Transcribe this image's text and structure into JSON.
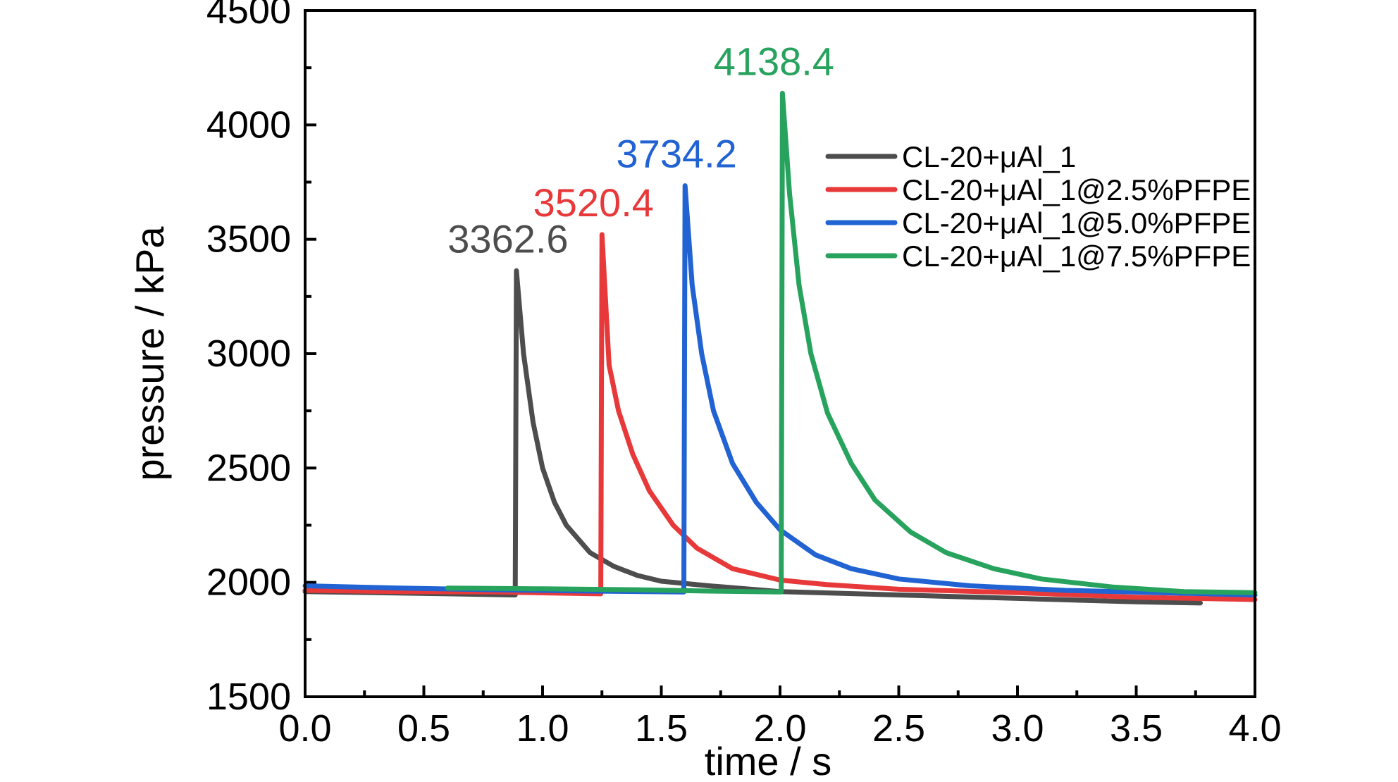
{
  "chart_data": {
    "type": "line",
    "xlabel": "time / s",
    "ylabel": "pressure / kPa",
    "xlim": [
      0.0,
      4.0
    ],
    "ylim": [
      1500,
      4500
    ],
    "x_ticks": [
      "0.0",
      "0.5",
      "1.0",
      "1.5",
      "2.0",
      "2.5",
      "3.0",
      "3.5",
      "4.0"
    ],
    "y_ticks": [
      "1500",
      "2000",
      "2500",
      "3000",
      "3500",
      "4000",
      "4500"
    ],
    "grid": false,
    "legend_position": "top-right",
    "series": [
      {
        "name": "CL-20+μAl_1",
        "color": "#4d4d4d",
        "points": [
          [
            0.0,
            1960
          ],
          [
            0.3,
            1955
          ],
          [
            0.6,
            1950
          ],
          [
            0.88,
            1945
          ],
          [
            0.885,
            1945
          ],
          [
            0.89,
            3362.6
          ],
          [
            0.92,
            3000
          ],
          [
            0.96,
            2700
          ],
          [
            1.0,
            2500
          ],
          [
            1.05,
            2350
          ],
          [
            1.1,
            2250
          ],
          [
            1.2,
            2130
          ],
          [
            1.3,
            2070
          ],
          [
            1.4,
            2030
          ],
          [
            1.5,
            2005
          ],
          [
            1.7,
            1985
          ],
          [
            2.0,
            1960
          ],
          [
            2.5,
            1945
          ],
          [
            3.0,
            1930
          ],
          [
            3.5,
            1915
          ],
          [
            3.77,
            1910
          ]
        ],
        "peak_label": "3362.6",
        "peak": [
          0.89,
          3362.6
        ]
      },
      {
        "name": "CL-20+μAl_1@2.5%PFPE",
        "color": "#e8393a",
        "points": [
          [
            0.0,
            1965
          ],
          [
            0.4,
            1960
          ],
          [
            0.8,
            1958
          ],
          [
            1.24,
            1950
          ],
          [
            1.245,
            1950
          ],
          [
            1.25,
            3520.4
          ],
          [
            1.28,
            2950
          ],
          [
            1.32,
            2750
          ],
          [
            1.38,
            2560
          ],
          [
            1.45,
            2400
          ],
          [
            1.55,
            2250
          ],
          [
            1.65,
            2150
          ],
          [
            1.8,
            2060
          ],
          [
            2.0,
            2010
          ],
          [
            2.2,
            1990
          ],
          [
            2.5,
            1970
          ],
          [
            3.0,
            1955
          ],
          [
            3.5,
            1935
          ],
          [
            4.0,
            1925
          ]
        ],
        "peak_label": "3520.4",
        "peak": [
          1.25,
          3520.4
        ]
      },
      {
        "name": "CL-20+μAl_1@5.0%PFPE",
        "color": "#2163d2",
        "points": [
          [
            0.0,
            1985
          ],
          [
            0.4,
            1975
          ],
          [
            0.8,
            1968
          ],
          [
            1.2,
            1962
          ],
          [
            1.59,
            1958
          ],
          [
            1.595,
            1958
          ],
          [
            1.6,
            3734.2
          ],
          [
            1.63,
            3300
          ],
          [
            1.67,
            3000
          ],
          [
            1.72,
            2750
          ],
          [
            1.8,
            2520
          ],
          [
            1.9,
            2350
          ],
          [
            2.0,
            2230
          ],
          [
            2.15,
            2120
          ],
          [
            2.3,
            2060
          ],
          [
            2.5,
            2015
          ],
          [
            2.8,
            1985
          ],
          [
            3.2,
            1965
          ],
          [
            3.6,
            1955
          ],
          [
            4.0,
            1945
          ]
        ],
        "peak_label": "3734.2",
        "peak": [
          1.6,
          3734.2
        ]
      },
      {
        "name": "CL-20+μAl_1@7.5%PFPE",
        "color": "#27a35e",
        "points": [
          [
            0.6,
            1975
          ],
          [
            1.0,
            1972
          ],
          [
            1.4,
            1968
          ],
          [
            1.7,
            1962
          ],
          [
            2.0,
            1958
          ],
          [
            2.005,
            1958
          ],
          [
            2.01,
            4138.4
          ],
          [
            2.04,
            3700
          ],
          [
            2.08,
            3300
          ],
          [
            2.13,
            3000
          ],
          [
            2.2,
            2740
          ],
          [
            2.3,
            2520
          ],
          [
            2.4,
            2360
          ],
          [
            2.55,
            2220
          ],
          [
            2.7,
            2130
          ],
          [
            2.9,
            2060
          ],
          [
            3.1,
            2015
          ],
          [
            3.4,
            1980
          ],
          [
            3.7,
            1960
          ],
          [
            4.0,
            1955
          ]
        ],
        "peak_label": "4138.4",
        "peak": [
          2.01,
          4138.4
        ]
      }
    ]
  }
}
